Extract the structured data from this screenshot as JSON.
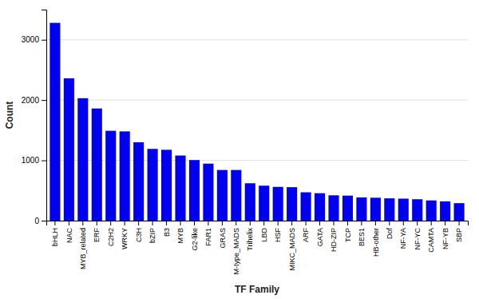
{
  "chart_data": {
    "type": "bar",
    "categories": [
      "bHLH",
      "NAC",
      "MYB_related",
      "ERF",
      "C2H2",
      "WRKY",
      "C3H",
      "bZIP",
      "B3",
      "MYB",
      "G2-like",
      "FAR1",
      "GRAS",
      "M-type_MADS",
      "Trihelix",
      "LBD",
      "HSF",
      "MIKC_MADS",
      "ARF",
      "GATA",
      "HD-ZIP",
      "TCP",
      "BES1",
      "HB-other",
      "Dof",
      "NF-YA",
      "NF-YC",
      "CAMTA",
      "NF-YB",
      "SBP"
    ],
    "values": [
      3280,
      2360,
      2030,
      1860,
      1490,
      1480,
      1300,
      1190,
      1175,
      1080,
      1005,
      945,
      840,
      840,
      620,
      580,
      560,
      555,
      470,
      455,
      420,
      415,
      385,
      380,
      370,
      365,
      355,
      335,
      320,
      290
    ],
    "color": "#0000EE",
    "xlabel": "TF Family",
    "ylabel": "Count",
    "ylim": [
      0,
      3500
    ],
    "yticks": [
      0,
      1000,
      2000,
      3000
    ],
    "grid": true
  }
}
